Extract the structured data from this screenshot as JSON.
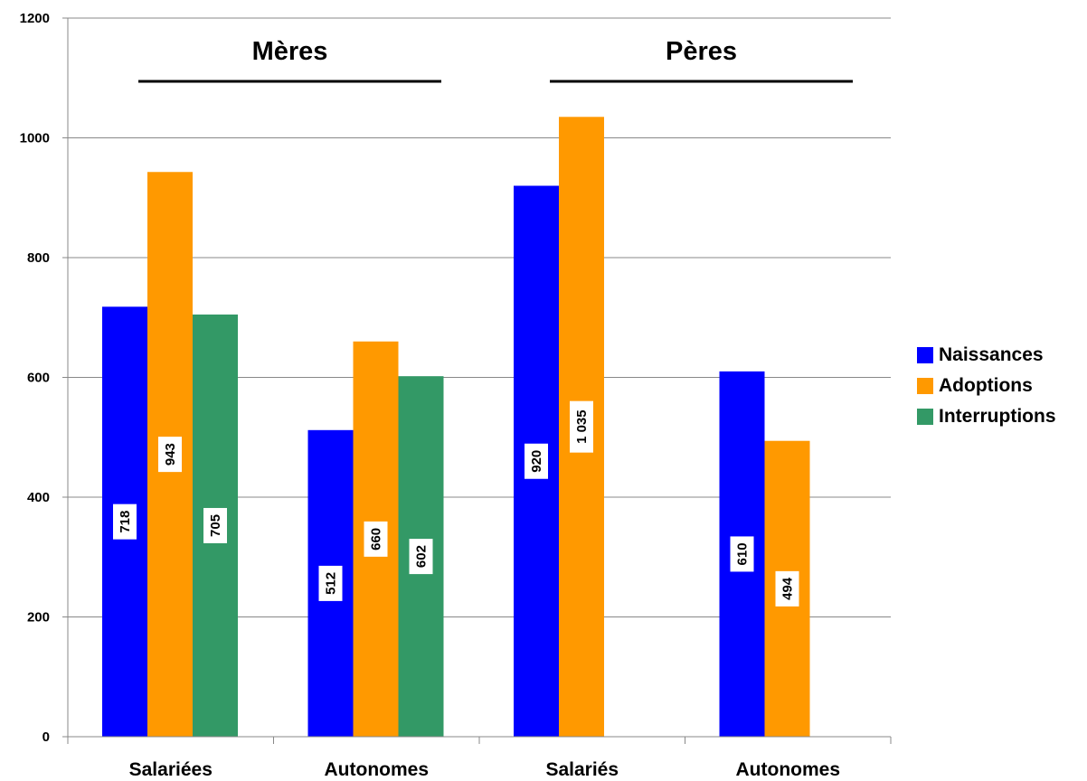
{
  "chart_data": {
    "type": "bar",
    "categories": [
      "Salariées",
      "Autonomes",
      "Salariés",
      "Autonomes"
    ],
    "groups": [
      {
        "title": "Mères",
        "categories": [
          0,
          1
        ]
      },
      {
        "title": "Pères",
        "categories": [
          2,
          3
        ]
      }
    ],
    "series": [
      {
        "name": "Naissances",
        "color": "#0000ff",
        "values": [
          718,
          512,
          920,
          610
        ],
        "labels": [
          "718",
          "512",
          "920",
          "610"
        ]
      },
      {
        "name": "Adoptions",
        "color": "#ff9900",
        "values": [
          943,
          660,
          1035,
          494
        ],
        "labels": [
          "943",
          "660",
          "1 035",
          "494"
        ]
      },
      {
        "name": "Interruptions",
        "color": "#339966",
        "values": [
          705,
          602,
          null,
          null
        ],
        "labels": [
          "705",
          "602",
          null,
          null
        ]
      }
    ],
    "yticks": [
      "0",
      "200",
      "400",
      "600",
      "800",
      "1000",
      "1200"
    ],
    "ylim": [
      0,
      1200
    ],
    "grid": true,
    "legend_position": "right"
  }
}
